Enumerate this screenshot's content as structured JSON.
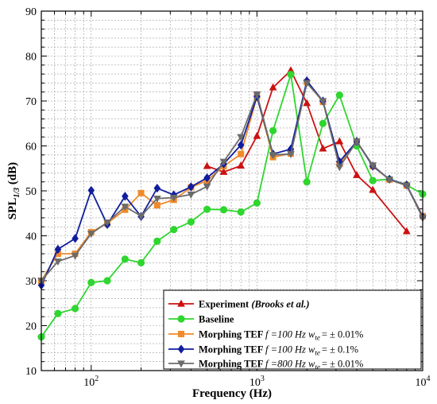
{
  "chart_data": {
    "type": "line",
    "xlabel": "Frequency (Hz)",
    "ylabel": "SPL",
    "ylabel_sub": "1/3",
    "ylabel_unit": " (dB)",
    "xscale": "log",
    "xlim": [
      50,
      10000
    ],
    "ylim": [
      10,
      90
    ],
    "yticks": [
      10,
      20,
      30,
      40,
      50,
      60,
      70,
      80,
      90
    ],
    "xticks": [
      {
        "value": 100,
        "base": "10",
        "exp": "2"
      },
      {
        "value": 1000,
        "base": "10",
        "exp": "3"
      },
      {
        "value": 10000,
        "base": "10",
        "exp": "4"
      }
    ],
    "grid": true,
    "legend_position": "bottom-right",
    "series": [
      {
        "name": "Experiment",
        "name_italic": " (Brooks et al.)",
        "color": "#cc1111",
        "marker": "triangle",
        "x": [
          500,
          630,
          800,
          1000,
          1250,
          1600,
          2000,
          2500,
          3150,
          4000,
          5000,
          8000
        ],
        "y": [
          55.5,
          54.2,
          55.6,
          62.2,
          73.0,
          76.8,
          69.5,
          59.4,
          61.0,
          53.5,
          50.2,
          41.0
        ]
      },
      {
        "name": "Baseline",
        "name_italic": "",
        "color": "#2fd62f",
        "marker": "circle",
        "x": [
          50,
          63,
          80,
          100,
          125,
          160,
          200,
          250,
          315,
          400,
          500,
          630,
          800,
          1000,
          1250,
          1600,
          2000,
          2500,
          3150,
          4000,
          5000,
          6300,
          8000,
          10000
        ],
        "y": [
          17.5,
          22.7,
          23.8,
          29.6,
          30.0,
          34.8,
          34.0,
          38.8,
          41.4,
          43.1,
          45.9,
          45.8,
          45.3,
          47.3,
          63.4,
          75.9,
          52.0,
          65.0,
          71.3,
          60.0,
          52.3,
          52.6,
          51.3,
          49.3
        ]
      },
      {
        "name": "Morphing TEF ",
        "params": "f =100 Hz  w",
        "sub": "te",
        "tail": "= ± 0.01%",
        "color": "#f08a2a",
        "marker": "square",
        "x": [
          50,
          63,
          80,
          100,
          125,
          160,
          200,
          250,
          315,
          400,
          500,
          630,
          800,
          1000,
          1250,
          1600,
          2000,
          2500,
          3150,
          4000,
          5000,
          6300,
          8000,
          10000
        ],
        "y": [
          30.0,
          36.0,
          36.0,
          40.8,
          42.8,
          45.8,
          49.5,
          46.8,
          48.0,
          50.8,
          52.3,
          55.5,
          58.2,
          71.0,
          57.5,
          58.3,
          74.2,
          69.8,
          56.0,
          61.0,
          55.5,
          52.5,
          51.2,
          44.4
        ]
      },
      {
        "name": "Morphing TEF ",
        "params": "f =100 Hz  w",
        "sub": "te",
        "tail": "= ± 0.1%",
        "color": "#101e9e",
        "marker": "diamond",
        "x": [
          50,
          63,
          80,
          100,
          125,
          160,
          200,
          250,
          315,
          400,
          500,
          630,
          800,
          1000,
          1250,
          1600,
          2000,
          2500,
          3150,
          4000,
          5000,
          6300,
          8000,
          10000
        ],
        "y": [
          29.0,
          37.0,
          39.4,
          50.1,
          42.5,
          48.8,
          44.3,
          50.6,
          49.1,
          50.9,
          52.9,
          56.0,
          60.2,
          71.0,
          58.2,
          59.3,
          74.5,
          70.0,
          56.5,
          61.0,
          55.5,
          52.6,
          51.3,
          44.2
        ]
      },
      {
        "name": "Morphing TEF ",
        "params": "f =800 Hz  w",
        "sub": "te",
        "tail": "= ± 0.01%",
        "color": "#6b6b6b",
        "marker": "triangle-down",
        "x": [
          50,
          63,
          80,
          100,
          125,
          160,
          200,
          250,
          315,
          400,
          500,
          630,
          800,
          1000,
          1250,
          1600,
          2000,
          2500,
          3150,
          4000,
          5000,
          6300,
          8000,
          10000
        ],
        "y": [
          30.0,
          34.3,
          35.6,
          40.5,
          43.0,
          46.5,
          44.4,
          48.3,
          48.5,
          49.2,
          51.0,
          56.5,
          62.0,
          71.5,
          58.0,
          58.2,
          74.0,
          70.0,
          55.3,
          61.0,
          55.7,
          52.5,
          51.2,
          44.0
        ]
      }
    ]
  }
}
